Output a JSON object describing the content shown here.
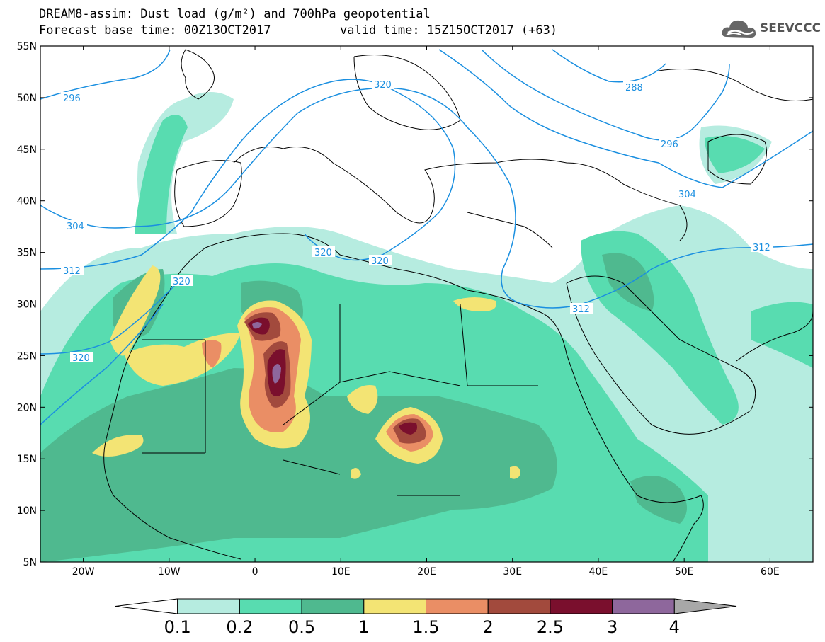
{
  "header": {
    "line1": "DREAM8-assim: Dust load (g/m²) and 700hPa geopotential",
    "base_time_label": "Forecast base time: 00Z13OCT2017",
    "valid_time_label": "valid time: 15Z15OCT2017 (+63)"
  },
  "logo": {
    "text": "SEEVCCC",
    "icon": "cloud-logo-icon"
  },
  "map": {
    "lon_range": [
      -25,
      65
    ],
    "lat_range": [
      5,
      55
    ],
    "lat_labels": [
      "55N",
      "50N",
      "45N",
      "40N",
      "35N",
      "30N",
      "25N",
      "20N",
      "15N",
      "10N",
      "5N"
    ],
    "lon_labels": [
      "20W",
      "10W",
      "0",
      "10E",
      "20E",
      "30E",
      "40E",
      "50E",
      "60E"
    ],
    "contour_color": "#1a8fe0",
    "contour_labels": [
      "296",
      "320",
      "288",
      "296",
      "304",
      "304",
      "312",
      "320",
      "320",
      "320",
      "312",
      "312",
      "320"
    ]
  },
  "colorbar": {
    "ticks": [
      "0.1",
      "0.2",
      "0.5",
      "1",
      "1.5",
      "2",
      "2.5",
      "3",
      "4"
    ],
    "colors": [
      "#ffffff",
      "#b6ece0",
      "#58dcb0",
      "#4fb98f",
      "#f3e474",
      "#ea8e65",
      "#a24a3d",
      "#7a0f2d",
      "#8e679c",
      "#a8a8a8"
    ]
  }
}
